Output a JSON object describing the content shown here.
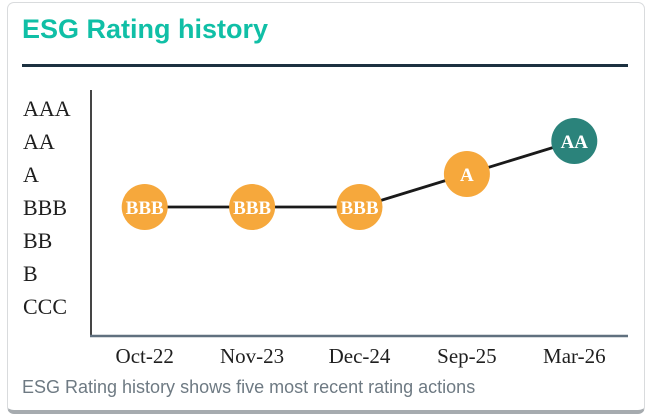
{
  "header": {
    "title": "ESG Rating history"
  },
  "caption": "ESG Rating history shows five most recent rating actions",
  "colors": {
    "title": "#10bfa6",
    "underline": "#1c3140",
    "caption_text": "#6e7a83",
    "connector_line": "#1a1a1a",
    "y_axis": "#454545",
    "x_axis": "#60707f",
    "tick_text": "#1f1f1f",
    "point_label": "#ffffff",
    "orange_point": "#f6a83c",
    "teal_point": "#2b837b"
  },
  "chart_data": {
    "type": "line",
    "title": "ESG Rating history",
    "categories": [
      "Oct-22",
      "Nov-23",
      "Dec-24",
      "Sep-25",
      "Mar-26"
    ],
    "values": [
      "BBB",
      "BBB",
      "BBB",
      "A",
      "AA"
    ],
    "point_colors": [
      "#f6a83c",
      "#f6a83c",
      "#f6a83c",
      "#f6a83c",
      "#2b837b"
    ],
    "y_ticks_top_to_bottom": [
      "AAA",
      "AA",
      "A",
      "BBB",
      "BB",
      "B",
      "CCC"
    ],
    "xlabel": "",
    "ylabel": "",
    "grid": false,
    "legend": false
  }
}
